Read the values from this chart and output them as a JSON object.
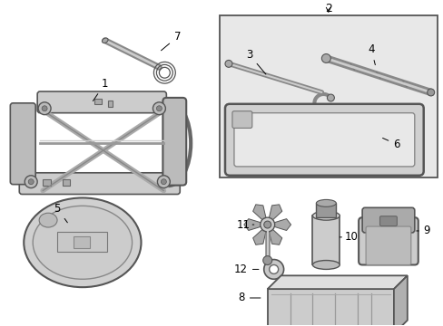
{
  "bg_color": "#ffffff",
  "line_color": "#444444",
  "box_bg": "#e8e8e8",
  "fig_width": 4.89,
  "fig_height": 3.6,
  "dpi": 100
}
